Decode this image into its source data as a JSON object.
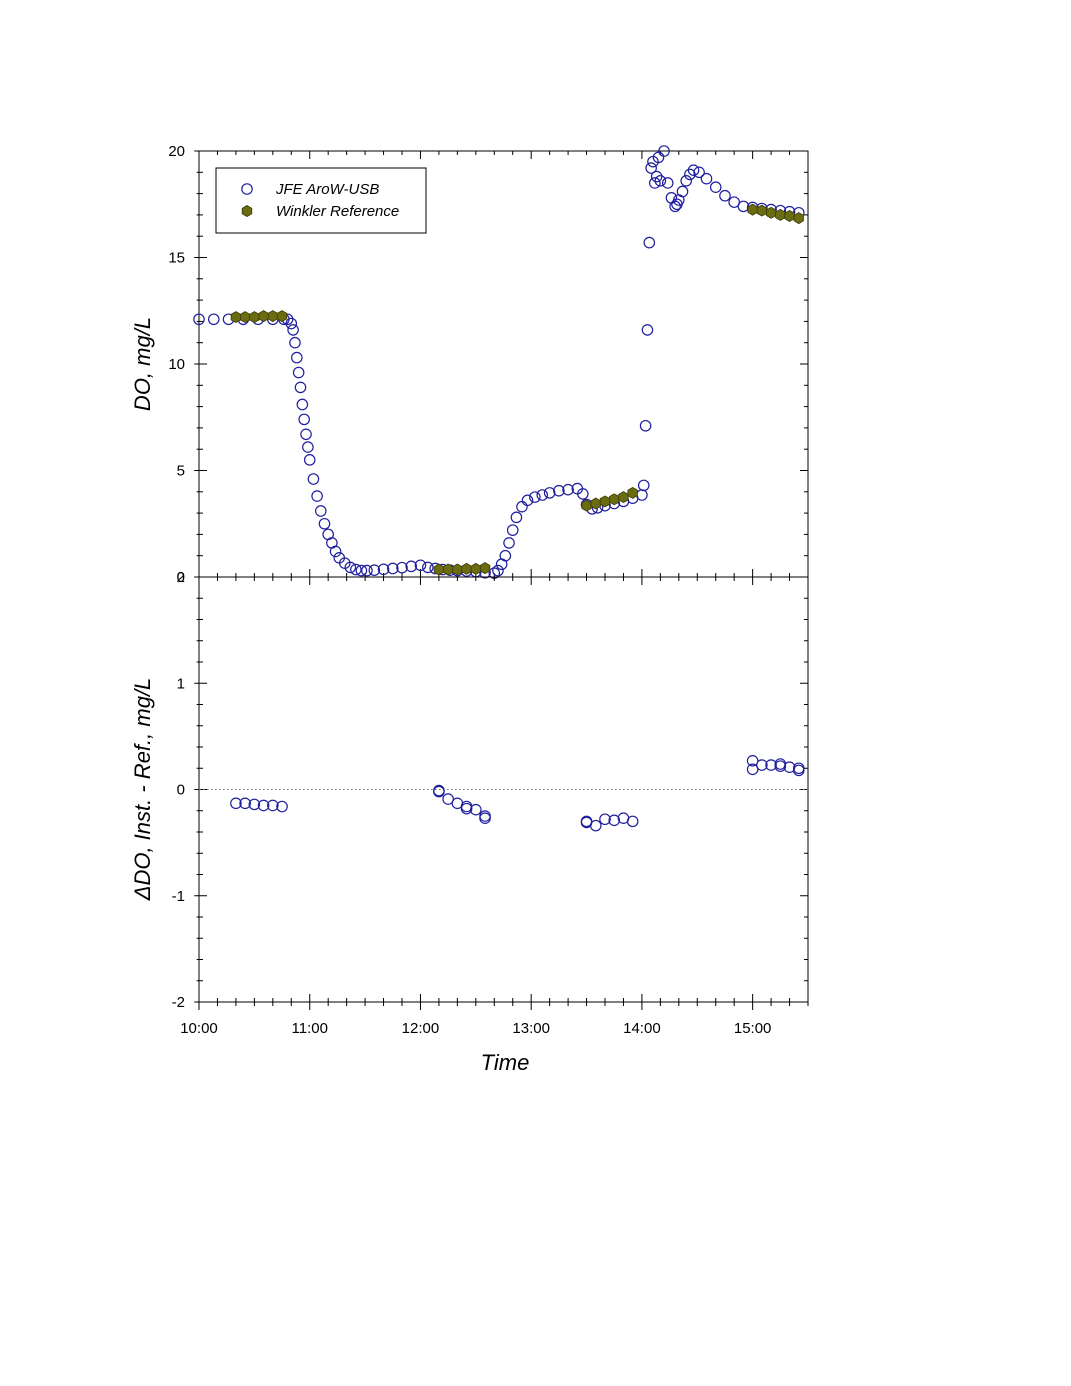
{
  "chart_data": [
    {
      "type": "scatter",
      "xlabel": "",
      "ylabel": "DO, mg/L",
      "ylim": [
        0,
        20
      ],
      "yticks": [
        0,
        5,
        10,
        15,
        20
      ],
      "x_unit": "time (HH:MM)",
      "xlim": [
        "10:00",
        "15:30"
      ],
      "legend": {
        "position": "top-left",
        "entries": [
          "JFE AroW-USB",
          "Winkler Reference"
        ]
      },
      "series": [
        {
          "name": "JFE AroW-USB",
          "marker": "open-circle",
          "color": "#1f1f9e",
          "x": [
            "10:00",
            "10:08",
            "10:16",
            "10:24",
            "10:32",
            "10:40",
            "10:46",
            "10:48",
            "10:50",
            "10:51",
            "10:52",
            "10:53",
            "10:54",
            "10:55",
            "10:56",
            "10:57",
            "10:58",
            "10:59",
            "11:00",
            "11:02",
            "11:04",
            "11:06",
            "11:08",
            "11:10",
            "11:12",
            "11:14",
            "11:16",
            "11:19",
            "11:22",
            "11:25",
            "11:28",
            "11:31",
            "11:35",
            "11:40",
            "11:45",
            "11:50",
            "11:55",
            "12:00",
            "12:04",
            "12:08",
            "12:12",
            "12:16",
            "12:20",
            "12:25",
            "12:30",
            "12:35",
            "12:40",
            "12:42",
            "12:44",
            "12:46",
            "12:48",
            "12:50",
            "12:52",
            "12:55",
            "12:58",
            "13:02",
            "13:06",
            "13:10",
            "13:15",
            "13:20",
            "13:25",
            "13:28",
            "13:30",
            "13:33",
            "13:36",
            "13:40",
            "13:45",
            "13:50",
            "13:55",
            "14:00",
            "14:01",
            "14:02",
            "14:03",
            "14:04",
            "14:05",
            "14:06",
            "14:07",
            "14:08",
            "14:09",
            "14:10",
            "14:12",
            "14:14",
            "14:16",
            "14:18",
            "14:19",
            "14:20",
            "14:22",
            "14:24",
            "14:26",
            "14:28",
            "14:31",
            "14:35",
            "14:40",
            "14:45",
            "14:50",
            "14:55",
            "15:00",
            "15:05",
            "15:10",
            "15:15",
            "15:20",
            "15:25"
          ],
          "y": [
            12.1,
            12.1,
            12.1,
            12.1,
            12.1,
            12.1,
            12.1,
            12.1,
            11.9,
            11.6,
            11.0,
            10.3,
            9.6,
            8.9,
            8.1,
            7.4,
            6.7,
            6.1,
            5.5,
            4.6,
            3.8,
            3.1,
            2.5,
            2.0,
            1.6,
            1.2,
            0.9,
            0.65,
            0.45,
            0.35,
            0.3,
            0.3,
            0.32,
            0.36,
            0.4,
            0.44,
            0.5,
            0.55,
            0.45,
            0.4,
            0.35,
            0.32,
            0.3,
            0.28,
            0.25,
            0.2,
            0.18,
            0.3,
            0.6,
            1.0,
            1.6,
            2.2,
            2.8,
            3.3,
            3.6,
            3.75,
            3.85,
            3.95,
            4.05,
            4.1,
            4.15,
            3.9,
            3.4,
            3.2,
            3.25,
            3.35,
            3.45,
            3.55,
            3.7,
            3.85,
            4.3,
            7.1,
            11.6,
            15.7,
            19.2,
            19.5,
            18.5,
            18.8,
            19.7,
            18.6,
            20.0,
            18.5,
            17.8,
            17.4,
            17.5,
            17.7,
            18.1,
            18.6,
            18.9,
            19.1,
            19.0,
            18.7,
            18.3,
            17.9,
            17.6,
            17.4,
            17.35,
            17.3,
            17.25,
            17.2,
            17.15,
            17.1
          ]
        },
        {
          "name": "Winkler Reference",
          "marker": "filled-hexagon",
          "color": "#6b6b10",
          "x": [
            "10:20",
            "10:25",
            "10:30",
            "10:35",
            "10:40",
            "10:45",
            "12:10",
            "12:15",
            "12:20",
            "12:25",
            "12:30",
            "12:35",
            "13:30",
            "13:35",
            "13:40",
            "13:45",
            "13:50",
            "13:55",
            "15:00",
            "15:05",
            "15:10",
            "15:15",
            "15:20",
            "15:25"
          ],
          "y": [
            12.2,
            12.2,
            12.2,
            12.25,
            12.25,
            12.25,
            0.35,
            0.35,
            0.35,
            0.38,
            0.38,
            0.42,
            3.35,
            3.45,
            3.55,
            3.65,
            3.75,
            3.95,
            17.25,
            17.2,
            17.1,
            17.0,
            16.95,
            16.85
          ]
        }
      ]
    },
    {
      "type": "scatter",
      "xlabel": "Time",
      "ylabel": "ΔDO, Inst. - Ref., mg/L",
      "ylim": [
        -2,
        2
      ],
      "yticks": [
        -2,
        -1,
        0,
        1,
        2
      ],
      "x_unit": "time (HH:MM)",
      "xlim": [
        "10:00",
        "15:30"
      ],
      "xticks": [
        "10:00",
        "11:00",
        "12:00",
        "13:00",
        "14:00",
        "15:00"
      ],
      "reference_line": {
        "y": 0,
        "style": "dotted"
      },
      "series": [
        {
          "name": "JFE AroW-USB",
          "marker": "open-circle",
          "color": "#1f1f9e",
          "x": [
            "10:20",
            "10:25",
            "10:30",
            "10:35",
            "10:40",
            "10:45",
            "12:10",
            "12:10",
            "12:15",
            "12:20",
            "12:25",
            "12:25",
            "12:30",
            "12:35",
            "12:35",
            "13:30",
            "13:30",
            "13:35",
            "13:40",
            "13:45",
            "13:50",
            "13:55",
            "15:00",
            "15:00",
            "15:05",
            "15:10",
            "15:15",
            "15:15",
            "15:20",
            "15:25",
            "15:25"
          ],
          "y": [
            -0.13,
            -0.13,
            -0.14,
            -0.15,
            -0.15,
            -0.16,
            -0.01,
            -0.02,
            -0.09,
            -0.13,
            -0.16,
            -0.18,
            -0.19,
            -0.25,
            -0.27,
            -0.3,
            -0.31,
            -0.34,
            -0.28,
            -0.29,
            -0.27,
            -0.3,
            0.27,
            0.19,
            0.23,
            0.23,
            0.24,
            0.22,
            0.21,
            0.18,
            0.2
          ]
        }
      ]
    }
  ]
}
